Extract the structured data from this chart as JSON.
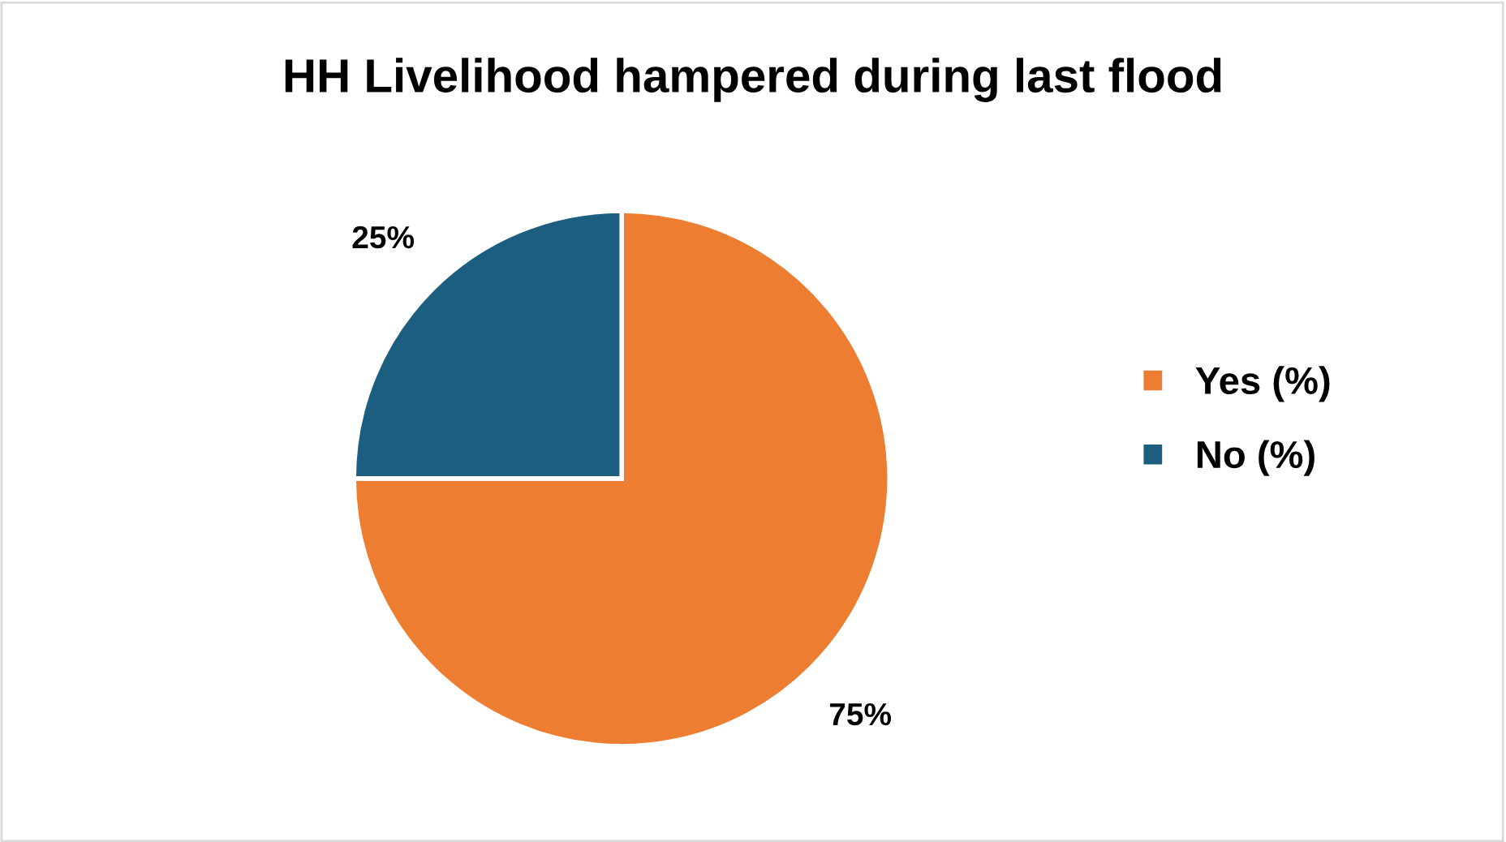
{
  "chart_data": {
    "type": "pie",
    "title": "HH Livelihood hampered during last flood",
    "categories": [
      "Yes (%)",
      "No (%)"
    ],
    "values": [
      75,
      25
    ],
    "colors": [
      "#ed7d31",
      "#1b5e80"
    ],
    "value_labels": [
      "75%",
      "25%"
    ],
    "legend": "right"
  }
}
